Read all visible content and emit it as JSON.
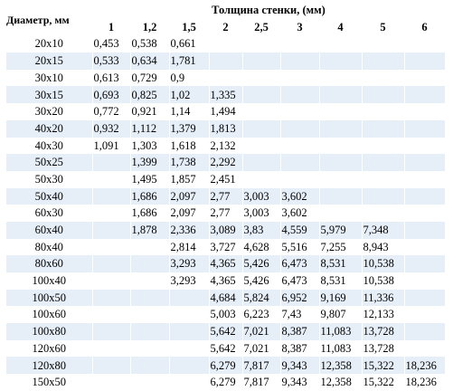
{
  "table": {
    "header": {
      "diameter_label": "Диаметр, мм",
      "thickness_label": "Толщина стенки, (мм)",
      "columns": [
        "1",
        "1,2",
        "1,5",
        "2",
        "2,5",
        "3",
        "4",
        "5",
        "6"
      ]
    },
    "rows": [
      {
        "size": "20x10",
        "v": [
          "0,453",
          "0,538",
          "0,661",
          "",
          "",
          "",
          "",
          "",
          ""
        ]
      },
      {
        "size": "20x15",
        "v": [
          "0,533",
          "0,634",
          "1,781",
          "",
          "",
          "",
          "",
          "",
          ""
        ]
      },
      {
        "size": "30x10",
        "v": [
          "0,613",
          "0,729",
          "0,9",
          "",
          "",
          "",
          "",
          "",
          ""
        ]
      },
      {
        "size": "30x15",
        "v": [
          "0,693",
          "0,825",
          "1,02",
          "1,335",
          "",
          "",
          "",
          "",
          ""
        ]
      },
      {
        "size": "30x20",
        "v": [
          "0,772",
          "0,921",
          "1,14",
          "1,494",
          "",
          "",
          "",
          "",
          ""
        ]
      },
      {
        "size": "40x20",
        "v": [
          "0,932",
          "1,112",
          "1,379",
          "1,813",
          "",
          "",
          "",
          "",
          ""
        ]
      },
      {
        "size": "40x30",
        "v": [
          "1,091",
          "1,303",
          "1,618",
          "2,132",
          "",
          "",
          "",
          "",
          ""
        ]
      },
      {
        "size": "50x25",
        "v": [
          "",
          "1,399",
          "1,738",
          "2,292",
          "",
          "",
          "",
          "",
          ""
        ]
      },
      {
        "size": "50x30",
        "v": [
          "",
          "1,495",
          "1,857",
          "2,451",
          "",
          "",
          "",
          "",
          ""
        ]
      },
      {
        "size": "50x40",
        "v": [
          "",
          "1,686",
          "2,097",
          "2,77",
          "3,003",
          "3,602",
          "",
          "",
          ""
        ]
      },
      {
        "size": "60x30",
        "v": [
          "",
          "1,686",
          "2,097",
          "2,77",
          "3,003",
          "3,602",
          "",
          "",
          ""
        ]
      },
      {
        "size": "60x40",
        "v": [
          "",
          "1,878",
          "2,336",
          "3,089",
          "3,83",
          "4,559",
          "5,979",
          "7,348",
          ""
        ]
      },
      {
        "size": "80x40",
        "v": [
          "",
          "",
          "2,814",
          "3,727",
          "4,628",
          "5,516",
          "7,255",
          "8,943",
          ""
        ]
      },
      {
        "size": "80x60",
        "v": [
          "",
          "",
          "3,293",
          "4,365",
          "5,426",
          "6,473",
          "8,531",
          "10,538",
          ""
        ]
      },
      {
        "size": "100x40",
        "v": [
          "",
          "",
          "3,293",
          "4,365",
          "5,426",
          "6,473",
          "8,531",
          "10,538",
          ""
        ]
      },
      {
        "size": "100x50",
        "v": [
          "",
          "",
          "",
          "4,684",
          "5,824",
          "6,952",
          "9,169",
          "11,336",
          ""
        ]
      },
      {
        "size": "100x60",
        "v": [
          "",
          "",
          "",
          "5,003",
          "6,223",
          "7,43",
          "9,807",
          "12,133",
          ""
        ]
      },
      {
        "size": "100x80",
        "v": [
          "",
          "",
          "",
          "5,642",
          "7,021",
          "8,387",
          "11,083",
          "13,728",
          ""
        ]
      },
      {
        "size": "120x60",
        "v": [
          "",
          "",
          "",
          "5,642",
          "7,021",
          "8,387",
          "11,083",
          "13,728",
          ""
        ]
      },
      {
        "size": "120x80",
        "v": [
          "",
          "",
          "",
          "6,279",
          "7,817",
          "9,343",
          "12,358",
          "15,322",
          "18,236"
        ]
      },
      {
        "size": "150x50",
        "v": [
          "",
          "",
          "",
          "6,279",
          "7,817",
          "9,343",
          "12,358",
          "15,322",
          "18,236"
        ]
      }
    ]
  }
}
